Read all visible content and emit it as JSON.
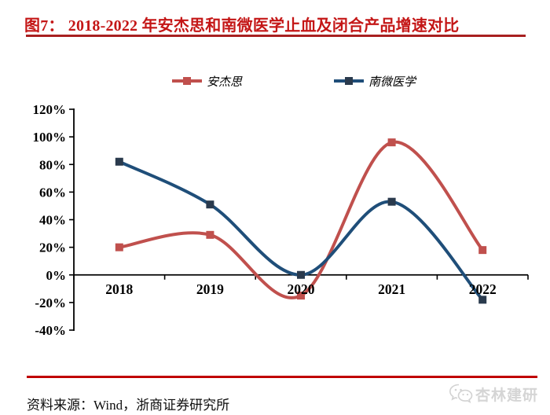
{
  "figure": {
    "title": "图7： 2018-2022 年安杰思和南微医学止血及闭合产品增速对比",
    "source_note": "资料来源：Wind，浙商证券研究所",
    "watermark_text": "杏林建研"
  },
  "colors": {
    "title_red": "#C41616",
    "title_rule_red": "#A82020",
    "footer_rule_red": "#C00000",
    "axis_black": "#000000",
    "watermark_gray": "#D5D5D5"
  },
  "chart_data": {
    "type": "line",
    "smooth": true,
    "categories": [
      "2018",
      "2019",
      "2020",
      "2021",
      "2022"
    ],
    "series": [
      {
        "name": "安杰思",
        "values": [
          20,
          29,
          -15,
          96,
          18
        ],
        "color": "#C0504D",
        "marker_color": "#C0504D"
      },
      {
        "name": "南微医学",
        "values": [
          82,
          51,
          0,
          53,
          -18
        ],
        "color": "#1F4E79",
        "marker_color": "#2A3A4D"
      }
    ],
    "ylim": [
      -40,
      120
    ],
    "ytick_step": 20,
    "ytick_labels": [
      "120%",
      "100%",
      "80%",
      "60%",
      "40%",
      "20%",
      "0%",
      "-20%",
      "-40%"
    ],
    "legend_position": "top",
    "grid": false
  }
}
